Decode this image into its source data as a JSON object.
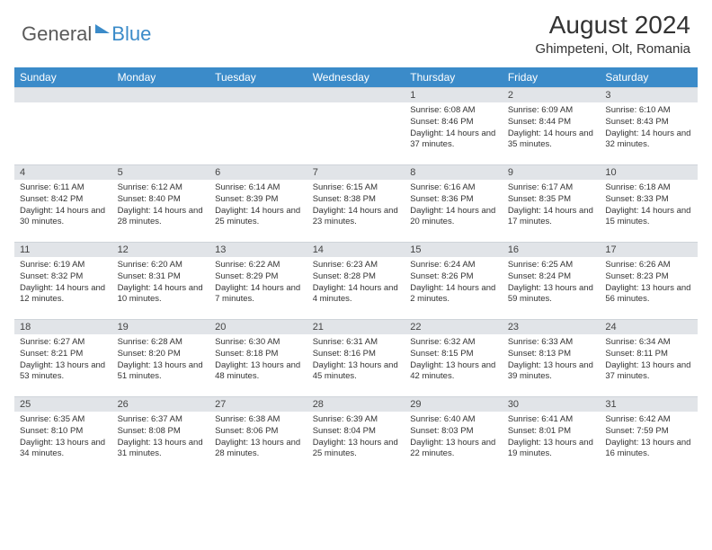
{
  "logo": {
    "text_general": "General",
    "text_blue": "Blue"
  },
  "title": {
    "month_year": "August 2024",
    "location": "Ghimpeteni, Olt, Romania"
  },
  "colors": {
    "header_bg": "#3b8bc9",
    "header_fg": "#ffffff",
    "daynum_bg": "#e1e4e8",
    "text": "#333333",
    "logo_gray": "#5a5a5a",
    "logo_blue": "#3b8bc9"
  },
  "weekdays": [
    "Sunday",
    "Monday",
    "Tuesday",
    "Wednesday",
    "Thursday",
    "Friday",
    "Saturday"
  ],
  "weeks": [
    [
      {
        "empty": true
      },
      {
        "empty": true
      },
      {
        "empty": true
      },
      {
        "empty": true
      },
      {
        "day": "1",
        "sunrise": "Sunrise: 6:08 AM",
        "sunset": "Sunset: 8:46 PM",
        "daylight": "Daylight: 14 hours and 37 minutes."
      },
      {
        "day": "2",
        "sunrise": "Sunrise: 6:09 AM",
        "sunset": "Sunset: 8:44 PM",
        "daylight": "Daylight: 14 hours and 35 minutes."
      },
      {
        "day": "3",
        "sunrise": "Sunrise: 6:10 AM",
        "sunset": "Sunset: 8:43 PM",
        "daylight": "Daylight: 14 hours and 32 minutes."
      }
    ],
    [
      {
        "day": "4",
        "sunrise": "Sunrise: 6:11 AM",
        "sunset": "Sunset: 8:42 PM",
        "daylight": "Daylight: 14 hours and 30 minutes."
      },
      {
        "day": "5",
        "sunrise": "Sunrise: 6:12 AM",
        "sunset": "Sunset: 8:40 PM",
        "daylight": "Daylight: 14 hours and 28 minutes."
      },
      {
        "day": "6",
        "sunrise": "Sunrise: 6:14 AM",
        "sunset": "Sunset: 8:39 PM",
        "daylight": "Daylight: 14 hours and 25 minutes."
      },
      {
        "day": "7",
        "sunrise": "Sunrise: 6:15 AM",
        "sunset": "Sunset: 8:38 PM",
        "daylight": "Daylight: 14 hours and 23 minutes."
      },
      {
        "day": "8",
        "sunrise": "Sunrise: 6:16 AM",
        "sunset": "Sunset: 8:36 PM",
        "daylight": "Daylight: 14 hours and 20 minutes."
      },
      {
        "day": "9",
        "sunrise": "Sunrise: 6:17 AM",
        "sunset": "Sunset: 8:35 PM",
        "daylight": "Daylight: 14 hours and 17 minutes."
      },
      {
        "day": "10",
        "sunrise": "Sunrise: 6:18 AM",
        "sunset": "Sunset: 8:33 PM",
        "daylight": "Daylight: 14 hours and 15 minutes."
      }
    ],
    [
      {
        "day": "11",
        "sunrise": "Sunrise: 6:19 AM",
        "sunset": "Sunset: 8:32 PM",
        "daylight": "Daylight: 14 hours and 12 minutes."
      },
      {
        "day": "12",
        "sunrise": "Sunrise: 6:20 AM",
        "sunset": "Sunset: 8:31 PM",
        "daylight": "Daylight: 14 hours and 10 minutes."
      },
      {
        "day": "13",
        "sunrise": "Sunrise: 6:22 AM",
        "sunset": "Sunset: 8:29 PM",
        "daylight": "Daylight: 14 hours and 7 minutes."
      },
      {
        "day": "14",
        "sunrise": "Sunrise: 6:23 AM",
        "sunset": "Sunset: 8:28 PM",
        "daylight": "Daylight: 14 hours and 4 minutes."
      },
      {
        "day": "15",
        "sunrise": "Sunrise: 6:24 AM",
        "sunset": "Sunset: 8:26 PM",
        "daylight": "Daylight: 14 hours and 2 minutes."
      },
      {
        "day": "16",
        "sunrise": "Sunrise: 6:25 AM",
        "sunset": "Sunset: 8:24 PM",
        "daylight": "Daylight: 13 hours and 59 minutes."
      },
      {
        "day": "17",
        "sunrise": "Sunrise: 6:26 AM",
        "sunset": "Sunset: 8:23 PM",
        "daylight": "Daylight: 13 hours and 56 minutes."
      }
    ],
    [
      {
        "day": "18",
        "sunrise": "Sunrise: 6:27 AM",
        "sunset": "Sunset: 8:21 PM",
        "daylight": "Daylight: 13 hours and 53 minutes."
      },
      {
        "day": "19",
        "sunrise": "Sunrise: 6:28 AM",
        "sunset": "Sunset: 8:20 PM",
        "daylight": "Daylight: 13 hours and 51 minutes."
      },
      {
        "day": "20",
        "sunrise": "Sunrise: 6:30 AM",
        "sunset": "Sunset: 8:18 PM",
        "daylight": "Daylight: 13 hours and 48 minutes."
      },
      {
        "day": "21",
        "sunrise": "Sunrise: 6:31 AM",
        "sunset": "Sunset: 8:16 PM",
        "daylight": "Daylight: 13 hours and 45 minutes."
      },
      {
        "day": "22",
        "sunrise": "Sunrise: 6:32 AM",
        "sunset": "Sunset: 8:15 PM",
        "daylight": "Daylight: 13 hours and 42 minutes."
      },
      {
        "day": "23",
        "sunrise": "Sunrise: 6:33 AM",
        "sunset": "Sunset: 8:13 PM",
        "daylight": "Daylight: 13 hours and 39 minutes."
      },
      {
        "day": "24",
        "sunrise": "Sunrise: 6:34 AM",
        "sunset": "Sunset: 8:11 PM",
        "daylight": "Daylight: 13 hours and 37 minutes."
      }
    ],
    [
      {
        "day": "25",
        "sunrise": "Sunrise: 6:35 AM",
        "sunset": "Sunset: 8:10 PM",
        "daylight": "Daylight: 13 hours and 34 minutes."
      },
      {
        "day": "26",
        "sunrise": "Sunrise: 6:37 AM",
        "sunset": "Sunset: 8:08 PM",
        "daylight": "Daylight: 13 hours and 31 minutes."
      },
      {
        "day": "27",
        "sunrise": "Sunrise: 6:38 AM",
        "sunset": "Sunset: 8:06 PM",
        "daylight": "Daylight: 13 hours and 28 minutes."
      },
      {
        "day": "28",
        "sunrise": "Sunrise: 6:39 AM",
        "sunset": "Sunset: 8:04 PM",
        "daylight": "Daylight: 13 hours and 25 minutes."
      },
      {
        "day": "29",
        "sunrise": "Sunrise: 6:40 AM",
        "sunset": "Sunset: 8:03 PM",
        "daylight": "Daylight: 13 hours and 22 minutes."
      },
      {
        "day": "30",
        "sunrise": "Sunrise: 6:41 AM",
        "sunset": "Sunset: 8:01 PM",
        "daylight": "Daylight: 13 hours and 19 minutes."
      },
      {
        "day": "31",
        "sunrise": "Sunrise: 6:42 AM",
        "sunset": "Sunset: 7:59 PM",
        "daylight": "Daylight: 13 hours and 16 minutes."
      }
    ]
  ]
}
